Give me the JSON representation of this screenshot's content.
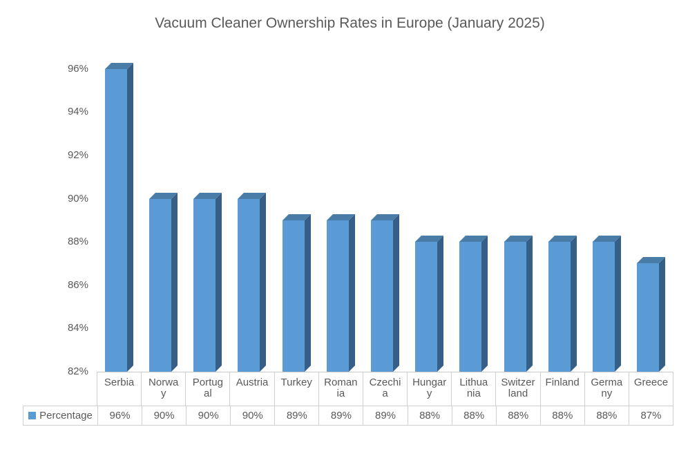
{
  "title": "Vacuum Cleaner Ownership Rates in Europe (January 2025)",
  "chart_data": {
    "type": "bar",
    "style": "3d-column",
    "title": "Vacuum Cleaner Ownership Rates in Europe (January 2025)",
    "categories": [
      "Serbia",
      "Norway",
      "Portugal",
      "Austria",
      "Turkey",
      "Romania",
      "Czechia",
      "Hungary",
      "Lithuania",
      "Switzerland",
      "Finland",
      "Germany",
      "Greece"
    ],
    "category_label_lines": [
      [
        "Serbia"
      ],
      [
        "Norwa",
        "y"
      ],
      [
        "Portug",
        "al"
      ],
      [
        "Austria"
      ],
      [
        "Turkey"
      ],
      [
        "Roman",
        "ia"
      ],
      [
        "Czechi",
        "a"
      ],
      [
        "Hungar",
        "y"
      ],
      [
        "Lithua",
        "nia"
      ],
      [
        "Switzer",
        "land"
      ],
      [
        "Finland"
      ],
      [
        "Germa",
        "ny"
      ],
      [
        "Greece"
      ]
    ],
    "series": [
      {
        "name": "Percentage",
        "values": [
          96,
          90,
          90,
          90,
          89,
          89,
          89,
          88,
          88,
          88,
          88,
          88,
          87
        ]
      }
    ],
    "value_labels": [
      "96%",
      "90%",
      "90%",
      "90%",
      "89%",
      "89%",
      "89%",
      "88%",
      "88%",
      "88%",
      "88%",
      "88%",
      "87%"
    ],
    "y_ticks": [
      "96%",
      "94%",
      "92%",
      "90%",
      "88%",
      "86%",
      "84%",
      "82%"
    ],
    "y_tick_values": [
      96,
      94,
      92,
      90,
      88,
      86,
      84,
      82
    ],
    "ylim": [
      82,
      96
    ],
    "xlabel": "",
    "ylabel": "",
    "grid": false,
    "data_table": true,
    "legend_label": "Percentage",
    "legend_position": "bottom-table",
    "colors": {
      "bar_front": "#5B9BD5",
      "bar_top": "#4A7CA8",
      "bar_side": "#365F88",
      "legend_key": "#5B9BD5",
      "text": "#595959",
      "border": "#D0CECE"
    }
  }
}
